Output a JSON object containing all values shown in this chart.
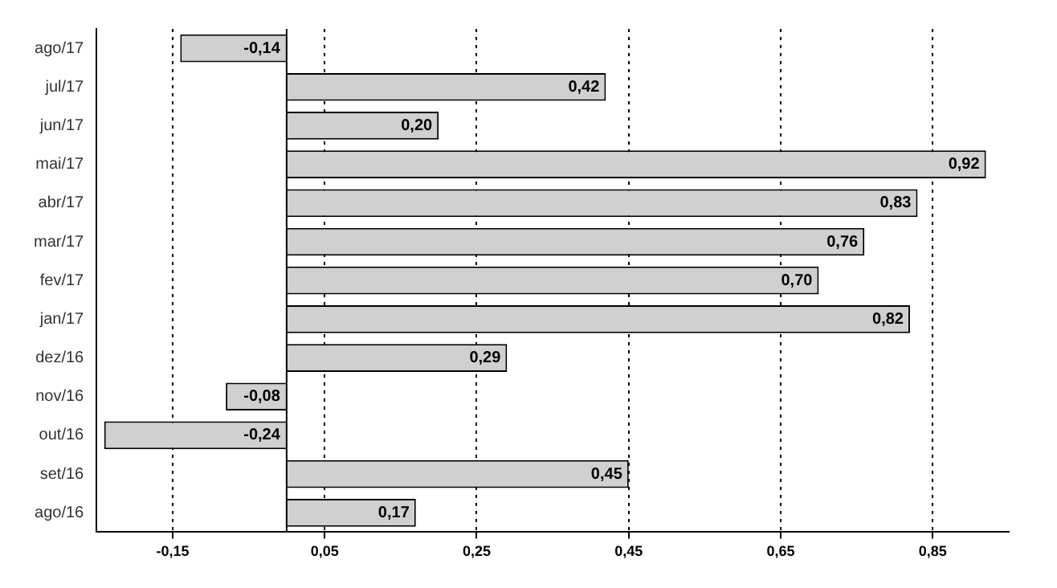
{
  "chart_data": {
    "type": "bar",
    "orientation": "horizontal",
    "categories": [
      "ago/17",
      "jul/17",
      "jun/17",
      "mai/17",
      "abr/17",
      "mar/17",
      "fev/17",
      "jan/17",
      "dez/16",
      "nov/16",
      "out/16",
      "set/16",
      "ago/16"
    ],
    "values": [
      -0.14,
      0.42,
      0.2,
      0.92,
      0.83,
      0.76,
      0.7,
      0.82,
      0.29,
      -0.08,
      -0.24,
      0.45,
      0.17
    ],
    "value_labels": [
      "-0,14",
      "0,42",
      "0,20",
      "0,92",
      "0,83",
      "0,76",
      "0,70",
      "0,82",
      "0,29",
      "-0,08",
      "-0,24",
      "0,45",
      "0,17"
    ],
    "color": "#d0d0d0",
    "xlim": [
      -0.25,
      0.95
    ],
    "xticks": [
      {
        "value": -0.15,
        "label": "-0,15"
      },
      {
        "value": 0.05,
        "label": "0,05"
      },
      {
        "value": 0.25,
        "label": "0,25"
      },
      {
        "value": 0.45,
        "label": "0,45"
      },
      {
        "value": 0.65,
        "label": "0,65"
      },
      {
        "value": 0.85,
        "label": "0,85"
      }
    ],
    "grid": "x",
    "line_style": "dotted",
    "legend": false,
    "ref_lines": [
      {
        "axis": "x",
        "value": 0
      }
    ]
  }
}
